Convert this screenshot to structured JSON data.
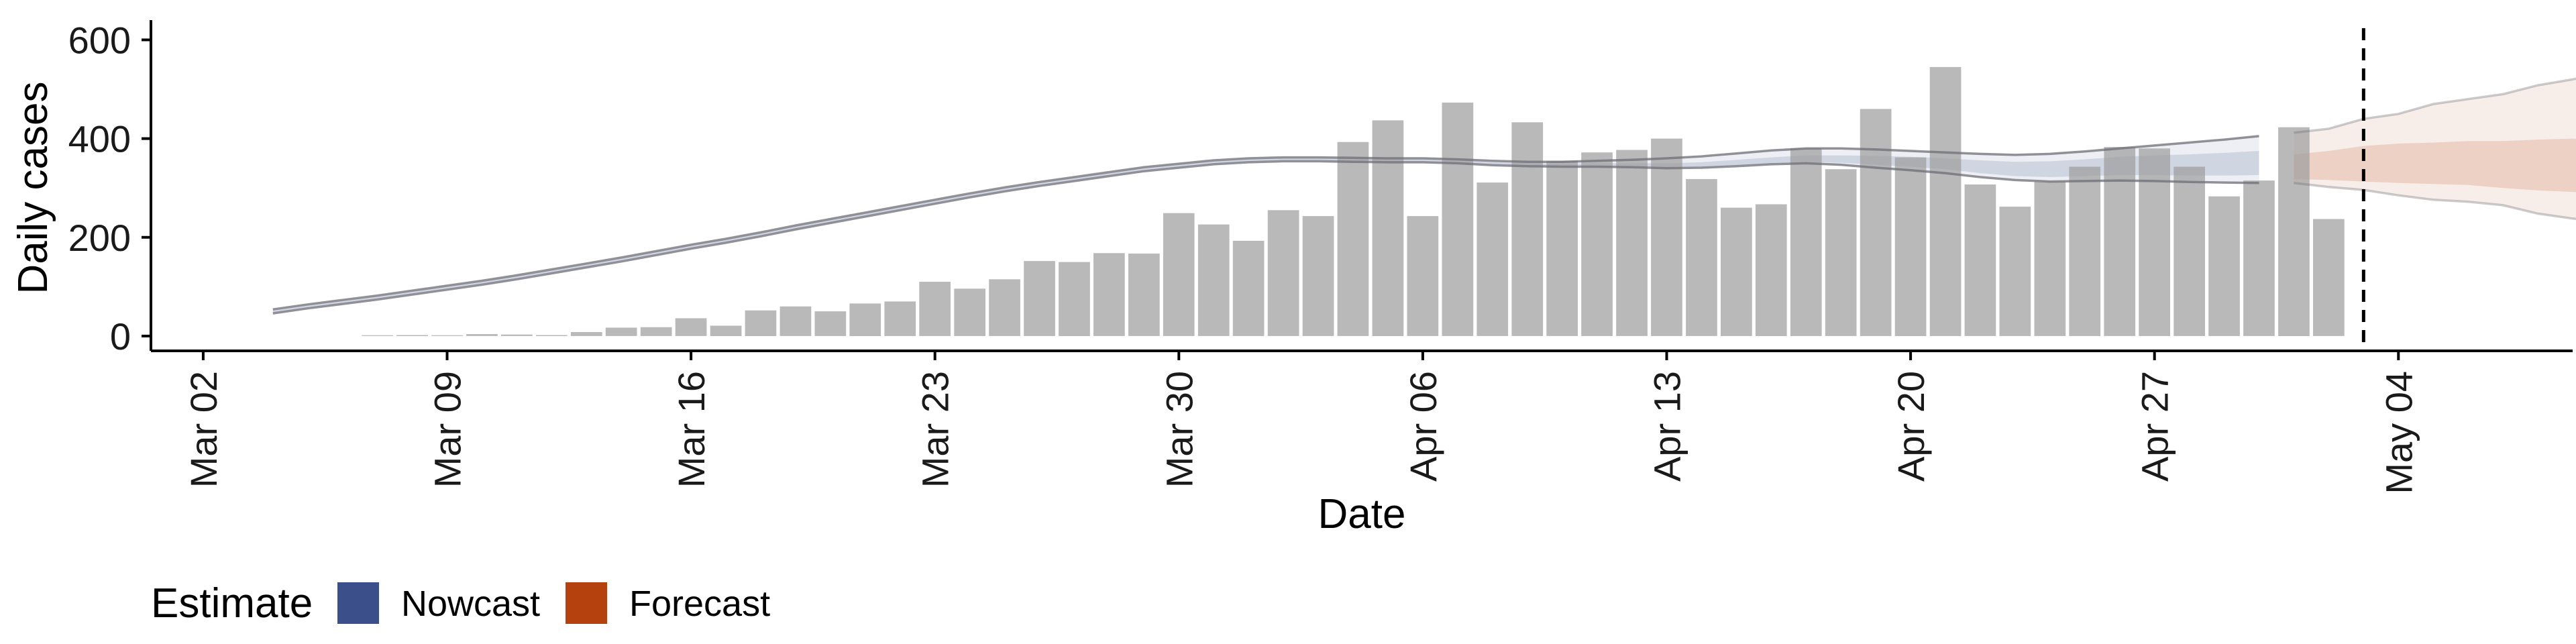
{
  "chart_data": {
    "type": "bar",
    "title": "",
    "xlabel": "Date",
    "ylabel": "Daily cases",
    "ylim": [
      -30,
      640
    ],
    "y_ticks": [
      0,
      200,
      400,
      600
    ],
    "x_range": [
      -1.5,
      68
    ],
    "x_ticks": [
      {
        "day": 0,
        "label": "Mar 02"
      },
      {
        "day": 7,
        "label": "Mar 09"
      },
      {
        "day": 14,
        "label": "Mar 16"
      },
      {
        "day": 21,
        "label": "Mar 23"
      },
      {
        "day": 28,
        "label": "Mar 30"
      },
      {
        "day": 35,
        "label": "Apr 06"
      },
      {
        "day": 42,
        "label": "Apr 13"
      },
      {
        "day": 49,
        "label": "Apr 20"
      },
      {
        "day": 56,
        "label": "Apr 27"
      },
      {
        "day": 63,
        "label": "May 04"
      }
    ],
    "bar_start_day": 5,
    "bar_values": [
      0,
      2,
      1,
      4,
      3,
      2,
      8,
      17,
      18,
      36,
      21,
      52,
      60,
      50,
      66,
      70,
      110,
      96,
      115,
      152,
      150,
      168,
      167,
      249,
      226,
      193,
      255,
      243,
      393,
      437,
      243,
      473,
      311,
      433,
      355,
      372,
      377,
      400,
      318,
      260,
      267,
      380,
      338,
      460,
      362,
      545,
      307,
      262,
      313,
      343,
      383,
      380,
      343,
      283,
      315,
      423,
      237
    ],
    "forecast_start_day": 62,
    "series": [
      {
        "name": "Nowcast",
        "color": "#3B4F8A",
        "start_day": 2,
        "median": [
          50,
          60,
          69,
          78,
          88,
          98,
          108,
          119,
          131,
          143,
          155,
          168,
          181,
          193,
          206,
          220,
          233,
          246,
          259,
          272,
          285,
          297,
          308,
          318,
          328,
          338,
          345,
          352,
          356,
          358,
          358,
          357,
          356,
          356,
          354,
          350,
          348,
          347,
          347,
          346,
          344,
          345,
          348,
          352,
          355,
          353,
          349,
          345,
          340,
          333,
          328,
          328,
          331,
          335,
          337,
          338,
          340,
          343
        ],
        "inner_lower": [
          48,
          58,
          67,
          76,
          86,
          96,
          106,
          117,
          129,
          141,
          153,
          166,
          179,
          191,
          204,
          218,
          231,
          244,
          257,
          270,
          283,
          295,
          306,
          316,
          326,
          336,
          343,
          350,
          354,
          356,
          356,
          355,
          354,
          354,
          352,
          348,
          346,
          345,
          345,
          344,
          342,
          343,
          346,
          350,
          353,
          351,
          347,
          343,
          338,
          330,
          324,
          322,
          324,
          326,
          326,
          325,
          325,
          326
        ],
        "inner_upper": [
          52,
          62,
          71,
          80,
          90,
          100,
          110,
          121,
          133,
          145,
          157,
          170,
          183,
          195,
          208,
          222,
          235,
          248,
          261,
          274,
          287,
          299,
          310,
          320,
          330,
          340,
          347,
          354,
          358,
          360,
          360,
          359,
          358,
          358,
          356,
          352,
          350,
          349,
          350,
          350,
          350,
          352,
          357,
          362,
          366,
          366,
          365,
          363,
          360,
          356,
          353,
          354,
          358,
          363,
          366,
          368,
          371,
          375
        ],
        "outer_lower": [
          46,
          56,
          65,
          74,
          84,
          94,
          104,
          115,
          127,
          139,
          151,
          164,
          177,
          189,
          202,
          216,
          229,
          242,
          255,
          268,
          281,
          293,
          304,
          314,
          324,
          334,
          341,
          348,
          352,
          354,
          354,
          353,
          352,
          352,
          350,
          346,
          344,
          343,
          343,
          342,
          340,
          341,
          344,
          348,
          350,
          347,
          341,
          336,
          330,
          322,
          316,
          313,
          314,
          315,
          314,
          312,
          311,
          310
        ],
        "outer_upper": [
          54,
          64,
          73,
          82,
          92,
          102,
          112,
          123,
          135,
          147,
          159,
          172,
          185,
          197,
          210,
          224,
          237,
          250,
          263,
          276,
          289,
          301,
          312,
          322,
          332,
          342,
          349,
          356,
          360,
          362,
          362,
          361,
          360,
          360,
          358,
          355,
          353,
          353,
          355,
          357,
          360,
          364,
          370,
          376,
          380,
          380,
          378,
          375,
          372,
          369,
          367,
          369,
          374,
          380,
          386,
          392,
          398,
          405
        ]
      },
      {
        "name": "Forecast",
        "color": "#B5410F",
        "start_day": 60,
        "median": [
          343,
          345,
          350,
          355,
          360,
          362,
          365,
          367,
          368,
          368,
          366,
          364,
          362,
          360,
          358
        ],
        "inner_lower": [
          318,
          316,
          313,
          310,
          308,
          306,
          300,
          295,
          292,
          288,
          276,
          260,
          248,
          240,
          232
        ],
        "inner_upper": [
          368,
          375,
          385,
          390,
          392,
          395,
          395,
          398,
          400,
          395,
          392,
          388,
          386,
          384,
          382
        ],
        "outer_lower": [
          310,
          302,
          296,
          285,
          276,
          272,
          265,
          248,
          238,
          230,
          214,
          188,
          193,
          177,
          155
        ],
        "outer_upper": [
          412,
          420,
          440,
          450,
          470,
          480,
          490,
          508,
          520,
          535,
          545,
          550,
          580,
          598,
          610
        ]
      }
    ],
    "legend": {
      "title": "Estimate",
      "entries": [
        "Nowcast",
        "Forecast"
      ],
      "position": "bottom-left"
    }
  }
}
